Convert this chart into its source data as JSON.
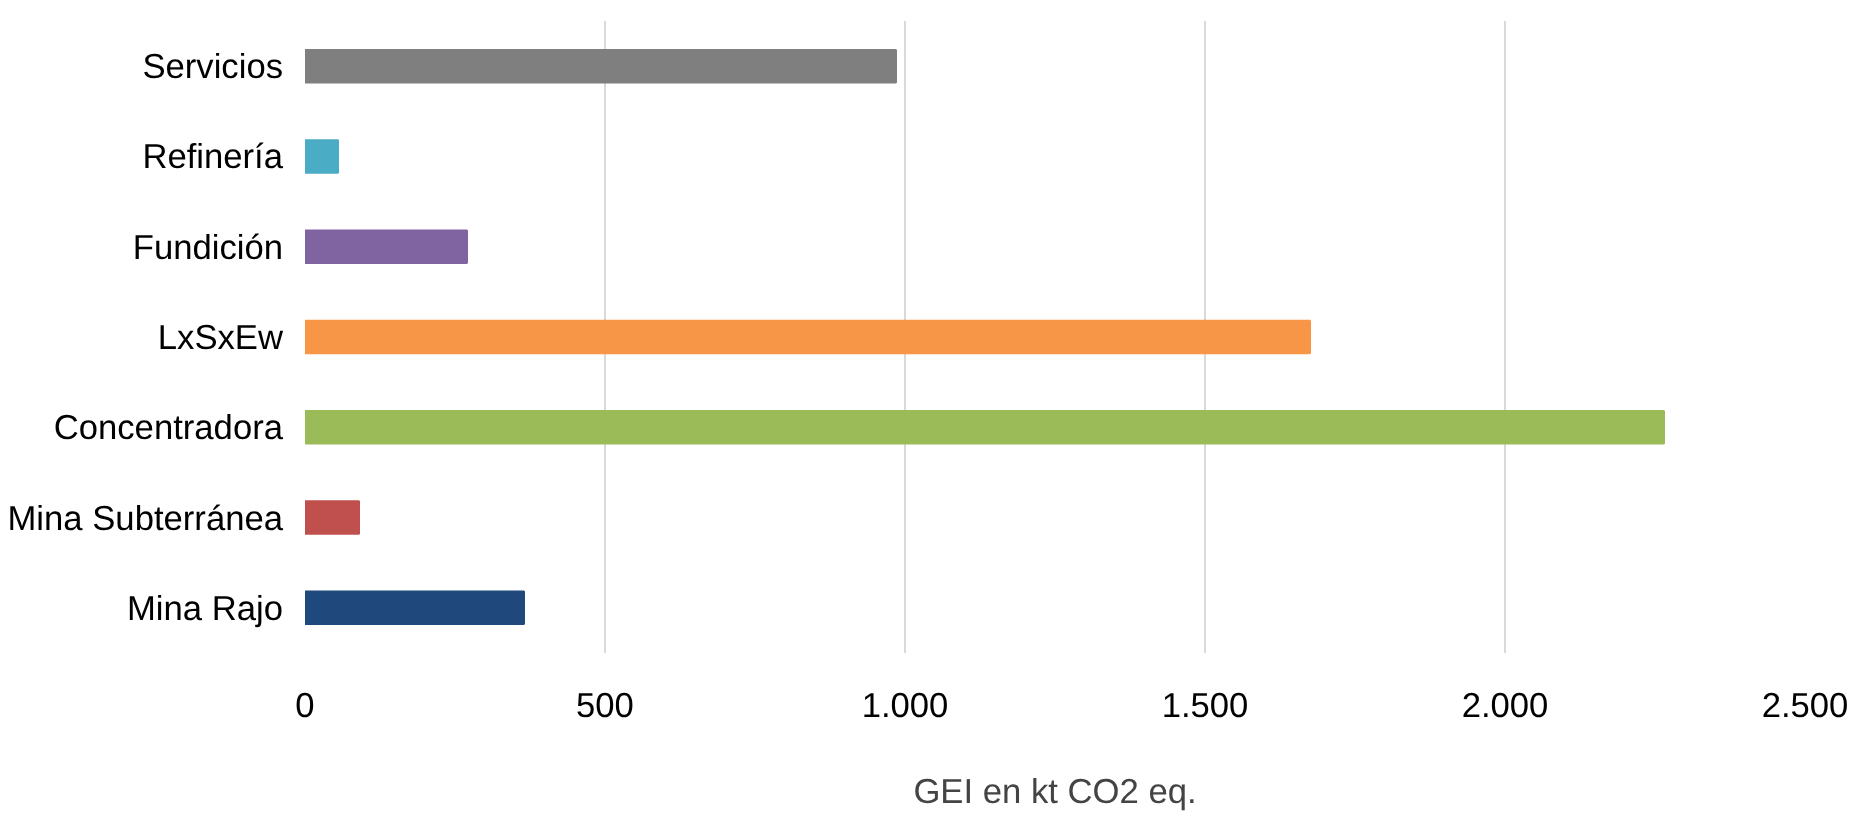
{
  "chart_data": {
    "type": "bar",
    "orientation": "horizontal",
    "xlabel": "GEI en kt CO2 eq.",
    "categories": [
      "Servicios",
      "Refinería",
      "Fundición",
      "LxSxEw",
      "Concentradora",
      "Mina Subterránea",
      "Mina Rajo"
    ],
    "values": [
      985,
      55,
      270,
      1675,
      2265,
      90,
      365
    ],
    "colors": [
      "#7f7f7f",
      "#4bacc6",
      "#8064a2",
      "#f79646",
      "#9bbb59",
      "#c0504d",
      "#1f497d"
    ],
    "xlim": [
      0,
      2500
    ],
    "xticks": [
      0,
      500,
      {
        "value": 1000,
        "label": "1.000"
      },
      {
        "value": 1500,
        "label": "1.500"
      },
      {
        "value": 2000,
        "label": "2.000"
      },
      {
        "value": 2500,
        "label": "2.500"
      }
    ],
    "grid": "x"
  }
}
